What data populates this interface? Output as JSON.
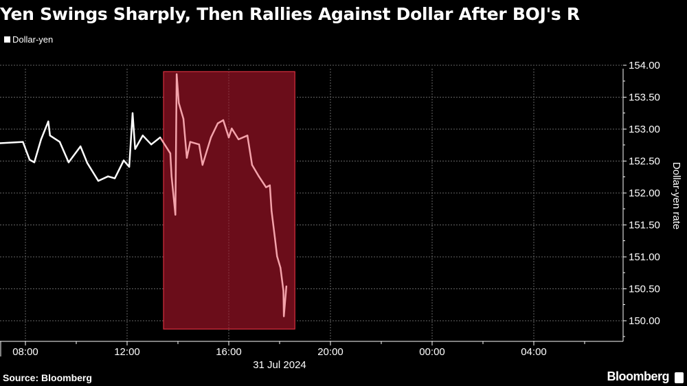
{
  "title": "Yen Swings Sharply, Then Rallies Against Dollar After BOJ's R",
  "legend": [
    {
      "label": "Dollar-yen",
      "color": "#ffffff"
    }
  ],
  "footer": {
    "source": "Source: Bloomberg",
    "brand": "Bloomberg"
  },
  "chart_data": {
    "type": "line",
    "title": "Yen Swings Sharply, Then Rallies Against Dollar After BOJ's R",
    "ylabel": "Dollar-yen rate",
    "xlabel": "31 Jul 2024",
    "ylim": [
      150.0,
      154.0
    ],
    "xlim": [
      "07:00",
      "07:30 (+1 day)"
    ],
    "y_ticks": [
      "154.00",
      "153.50",
      "153.00",
      "152.50",
      "152.00",
      "151.50",
      "151.00",
      "150.50",
      "150.00"
    ],
    "x_ticks": [
      "08:00",
      "12:00",
      "16:00",
      "20:00",
      "00:00",
      "04:00"
    ],
    "grid": true,
    "legend_position": "top-left",
    "highlight": {
      "x_start": "13:26",
      "x_end": "18:36",
      "y_low": 149.87,
      "y_high": 153.9,
      "fill": "#6b0d1a",
      "border": "#d9303f",
      "line_color": "#f4a3ab"
    },
    "series": [
      {
        "name": "Dollar-yen",
        "color": "#ffffff",
        "x": [
          "07:00",
          "07:54",
          "08:10",
          "08:21",
          "08:37",
          "08:54",
          "08:58",
          "09:21",
          "09:42",
          "10:10",
          "10:26",
          "10:52",
          "11:15",
          "11:31",
          "11:52",
          "12:05",
          "12:13",
          "12:19",
          "12:37",
          "12:57",
          "13:18",
          "13:42",
          "13:45",
          "13:54",
          "13:57",
          "14:02",
          "14:13",
          "14:21",
          "14:29",
          "14:50",
          "14:58",
          "15:18",
          "15:34",
          "15:47",
          "16:00",
          "16:07",
          "16:23",
          "16:44",
          "16:55",
          "17:11",
          "17:28",
          "17:37",
          "17:41",
          "17:49",
          "17:54",
          "18:02",
          "18:09",
          "18:10",
          "18:16"
        ],
        "y": [
          152.78,
          152.8,
          152.52,
          152.48,
          152.84,
          153.12,
          152.9,
          152.8,
          152.48,
          152.73,
          152.47,
          152.19,
          152.26,
          152.23,
          152.51,
          152.41,
          153.25,
          152.69,
          152.9,
          152.76,
          152.87,
          152.62,
          152.26,
          151.66,
          153.86,
          153.41,
          153.16,
          152.55,
          152.8,
          152.76,
          152.44,
          152.87,
          153.09,
          153.14,
          152.87,
          153.01,
          152.84,
          152.9,
          152.44,
          152.26,
          152.09,
          152.12,
          151.72,
          151.29,
          151.01,
          150.83,
          150.47,
          150.07,
          150.54
        ]
      }
    ]
  }
}
